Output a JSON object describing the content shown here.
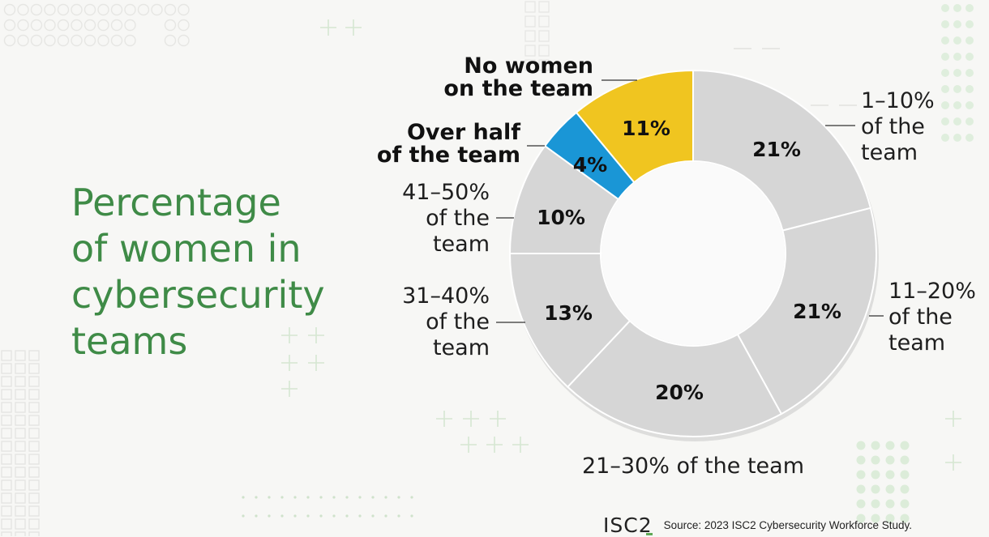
{
  "title_lines": [
    "Percentage",
    "of women in",
    "cybersecurity",
    "teams"
  ],
  "chart_data": {
    "type": "pie",
    "style": "donut",
    "title": "Percentage of women in cybersecurity teams",
    "slices": [
      {
        "label_lines": [
          "1–10%",
          "of the",
          "team"
        ],
        "value": 21,
        "value_label": "21%",
        "color": "#d6d6d6"
      },
      {
        "label_lines": [
          "11–20%",
          "of the",
          "team"
        ],
        "value": 21,
        "value_label": "21%",
        "color": "#d6d6d6"
      },
      {
        "label_lines": [
          "21–30% of the team"
        ],
        "value": 20,
        "value_label": "20%",
        "color": "#d6d6d6"
      },
      {
        "label_lines": [
          "31–40%",
          "of the",
          "team"
        ],
        "value": 13,
        "value_label": "13%",
        "color": "#d6d6d6"
      },
      {
        "label_lines": [
          "41–50%",
          "of the",
          "team"
        ],
        "value": 10,
        "value_label": "10%",
        "color": "#d6d6d6"
      },
      {
        "label_lines": [
          "Over half",
          "of the team"
        ],
        "value": 4,
        "value_label": "4%",
        "color": "#1a96d6",
        "emphasis": true
      },
      {
        "label_lines": [
          "No women",
          "on the team"
        ],
        "value": 11,
        "value_label": "11%",
        "color": "#f0c520",
        "emphasis": true
      }
    ]
  },
  "footer": {
    "logo": "ISC2",
    "source": "Source: 2023 ISC2 Cybersecurity Workforce Study."
  }
}
